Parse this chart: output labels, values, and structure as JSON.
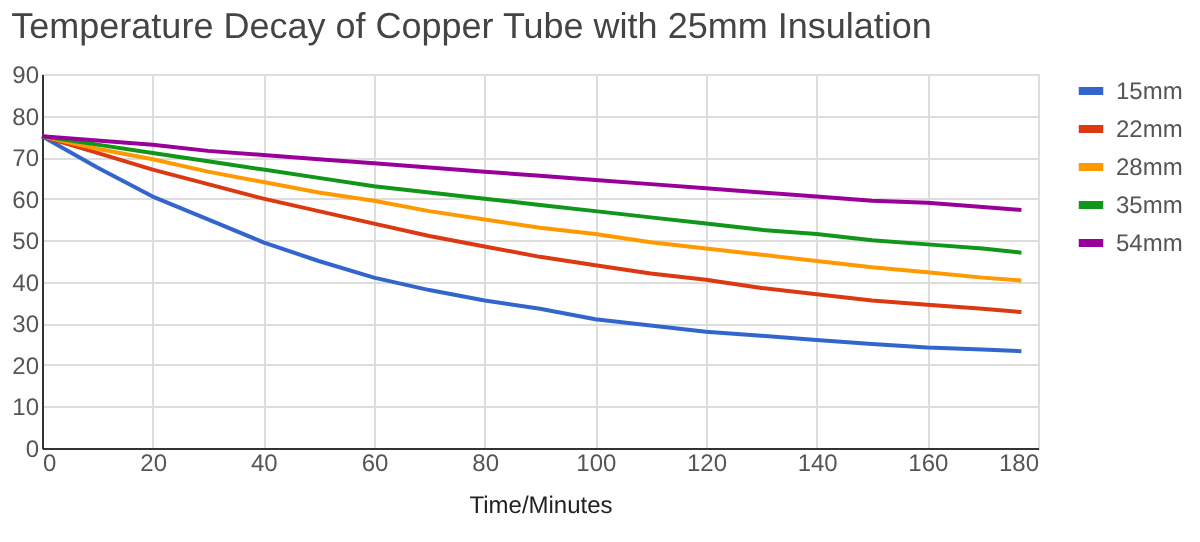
{
  "chart_data": {
    "type": "line",
    "title": "Temperature Decay of Copper Tube with 25mm Insulation",
    "xlabel": "Time/Minutes",
    "x": [
      0,
      10,
      20,
      30,
      40,
      50,
      60,
      70,
      80,
      90,
      100,
      110,
      120,
      130,
      140,
      150,
      160,
      170,
      177
    ],
    "series": [
      {
        "name": "15mm",
        "color": "#3366cc",
        "values": [
          75,
          67.5,
          60.5,
          55,
          49.5,
          45,
          41,
          38,
          35.5,
          33.5,
          31,
          29.5,
          28,
          27,
          26,
          25,
          24.2,
          23.7,
          23.3
        ]
      },
      {
        "name": "22mm",
        "color": "#dc3912",
        "values": [
          75,
          71,
          67,
          63.5,
          60,
          57,
          54,
          51,
          48.5,
          46,
          44,
          42,
          40.5,
          38.5,
          37,
          35.5,
          34.5,
          33.5,
          32.7
        ]
      },
      {
        "name": "28mm",
        "color": "#ff9900",
        "values": [
          75,
          72,
          69.5,
          66.5,
          64,
          61.5,
          59.5,
          57,
          55,
          53,
          51.5,
          49.5,
          48,
          46.5,
          45,
          43.5,
          42.3,
          41,
          40.3
        ]
      },
      {
        "name": "35mm",
        "color": "#109618",
        "values": [
          75,
          73,
          71,
          69,
          67,
          65,
          63,
          61.5,
          60,
          58.5,
          57,
          55.5,
          54,
          52.5,
          51.5,
          50,
          49,
          48,
          47
        ]
      },
      {
        "name": "54mm",
        "color": "#990099",
        "values": [
          75,
          74,
          73,
          71.5,
          70.5,
          69.5,
          68.5,
          67.5,
          66.5,
          65.5,
          64.5,
          63.5,
          62.5,
          61.5,
          60.5,
          59.5,
          59,
          58,
          57.3
        ]
      }
    ],
    "xlim": [
      0,
      180
    ],
    "xticks": [
      0,
      20,
      40,
      60,
      80,
      100,
      120,
      140,
      160,
      180
    ],
    "ylim": [
      0,
      90
    ],
    "yticks": [
      0,
      10,
      20,
      30,
      40,
      50,
      60,
      70,
      80,
      90
    ],
    "grid": true,
    "legend": "right",
    "marker": "none",
    "line_style": "solid"
  }
}
